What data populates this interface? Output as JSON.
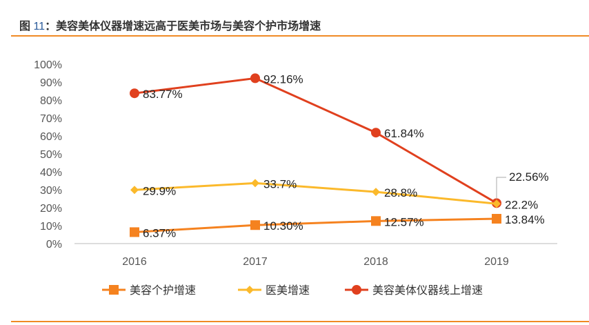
{
  "title_prefix": "图 ",
  "title_num": "11",
  "title_text": "：美容美体仪器增速远高于医美市场与美容个护市场增速",
  "chart_data": {
    "type": "line",
    "categories": [
      "2016",
      "2017",
      "2018",
      "2019"
    ],
    "ylim": [
      0,
      100
    ],
    "yticks": [
      "0%",
      "10%",
      "20%",
      "30%",
      "40%",
      "50%",
      "60%",
      "70%",
      "80%",
      "90%",
      "100%"
    ],
    "legend_position": "bottom",
    "series": [
      {
        "name": "美容个护增速",
        "values": [
          6.37,
          10.3,
          12.57,
          13.84
        ],
        "labels": [
          "6.37%",
          "10.30%",
          "12.57%",
          "13.84%"
        ],
        "color": "#f5821f",
        "marker": "square"
      },
      {
        "name": "医美增速",
        "values": [
          29.9,
          33.7,
          28.8,
          22.2
        ],
        "labels": [
          "29.9%",
          "33.7%",
          "28.8%",
          "22.2%"
        ],
        "color": "#fbb92b",
        "marker": "diamond"
      },
      {
        "name": "美容美体仪器线上增速",
        "values": [
          83.77,
          92.16,
          61.84,
          22.56
        ],
        "labels": [
          "83.77%",
          "92.16%",
          "61.84%",
          "22.56%"
        ],
        "color": "#e0401e",
        "marker": "circle"
      }
    ]
  }
}
